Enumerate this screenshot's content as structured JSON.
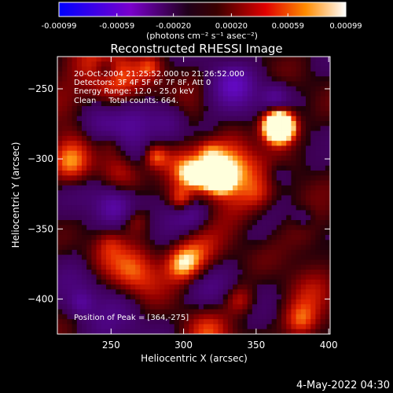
{
  "chart_data": {
    "type": "heatmap",
    "title": "Reconstructed RHESSI Image",
    "xlabel": "Heliocentric X (arcsec)",
    "ylabel": "Heliocentric Y (arcsec)",
    "xlim": [
      213,
      401
    ],
    "ylim": [
      -425,
      -227
    ],
    "x_ticks": [
      250,
      300,
      350,
      400
    ],
    "y_ticks": [
      -250,
      -300,
      -350,
      -400
    ],
    "colorbar": {
      "range": [
        -0.00099,
        0.00099
      ],
      "ticks": [
        "-0.00099",
        "-0.00059",
        "-0.00020",
        "0.00020",
        "0.00059",
        "0.00099"
      ],
      "tick_values": [
        -0.00099,
        -0.00059,
        -0.0002,
        0.0002,
        0.00059,
        0.00099
      ],
      "unit_label": "(photons cm⁻² s⁻¹ asec⁻²)"
    },
    "annotations": [
      "20-Oct-2004 21:25:52.000 to 21:26:52.000",
      "Detectors: 3F 4F 5F 6F 7F 8F, Att 0",
      "Energy Range: 12.0 - 25.0 keV",
      "Clean     Total counts: 664."
    ],
    "peak_label": "Position of Peak = [364,-275]",
    "peak": {
      "x": 364,
      "y": -275
    },
    "grid": false,
    "legend": "colorbar-top"
  },
  "timestamp": "4-May-2022 04:30"
}
